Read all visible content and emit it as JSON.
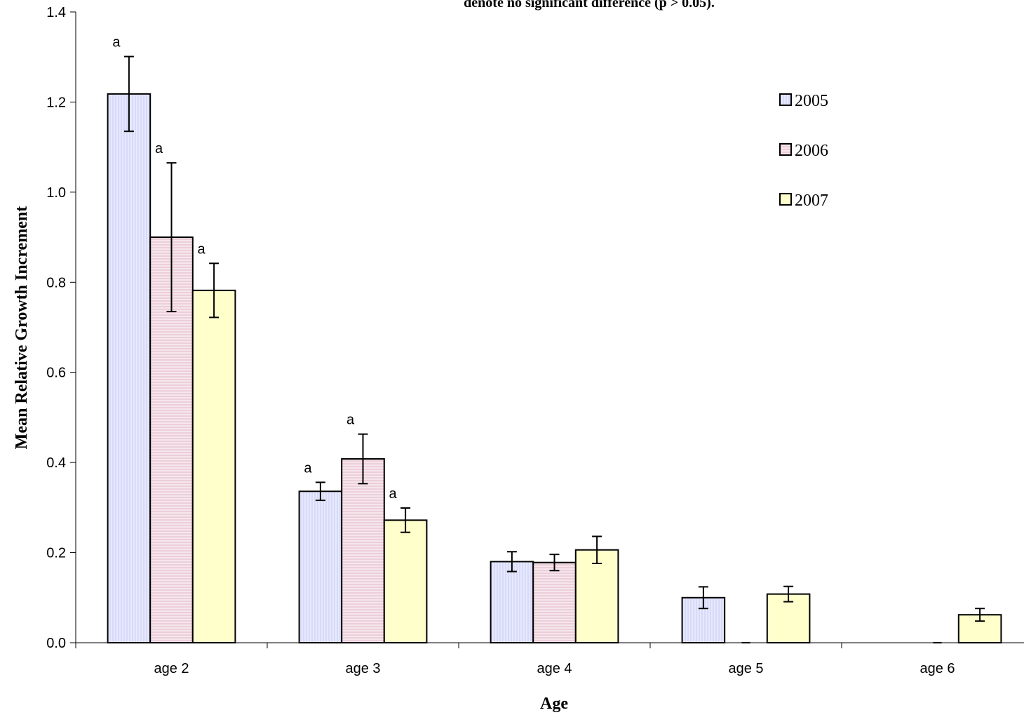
{
  "chart_data": {
    "type": "bar",
    "title": "denote no significant difference (p > 0.05).",
    "xlabel": "Age",
    "ylabel": "Mean Relative Growth Increment",
    "categories": [
      "age 2",
      "age 3",
      "age 4",
      "age 5",
      "age 6"
    ],
    "ylim": [
      0,
      1.4
    ],
    "yticks": [
      "0.0",
      "0.2",
      "0.4",
      "0.6",
      "0.8",
      "1.0",
      "1.2",
      "1.4"
    ],
    "series": [
      {
        "name": "2005",
        "color": "#dfe1fb",
        "pattern": "vertical-lines",
        "values": [
          1.218,
          0.336,
          0.18,
          0.1,
          null
        ],
        "error": [
          0.083,
          0.02,
          0.022,
          0.024,
          null
        ],
        "labels": [
          "a",
          "a",
          "",
          "",
          ""
        ]
      },
      {
        "name": "2006",
        "color": "#f3dce6",
        "pattern": "horizontal-lines",
        "values": [
          0.9,
          0.408,
          0.178,
          0.0,
          0.0
        ],
        "error": [
          0.165,
          0.055,
          0.018,
          null,
          null
        ],
        "labels": [
          "a",
          "a",
          "",
          "",
          ""
        ]
      },
      {
        "name": "2007",
        "color": "#ffffcc",
        "pattern": "solid",
        "values": [
          0.782,
          0.272,
          0.206,
          0.108,
          0.062
        ],
        "error": [
          0.06,
          0.027,
          0.03,
          0.017,
          0.014
        ],
        "labels": [
          "a",
          "a",
          "",
          "",
          ""
        ]
      }
    ],
    "legend": {
      "position": "top-right"
    },
    "grid": false
  }
}
